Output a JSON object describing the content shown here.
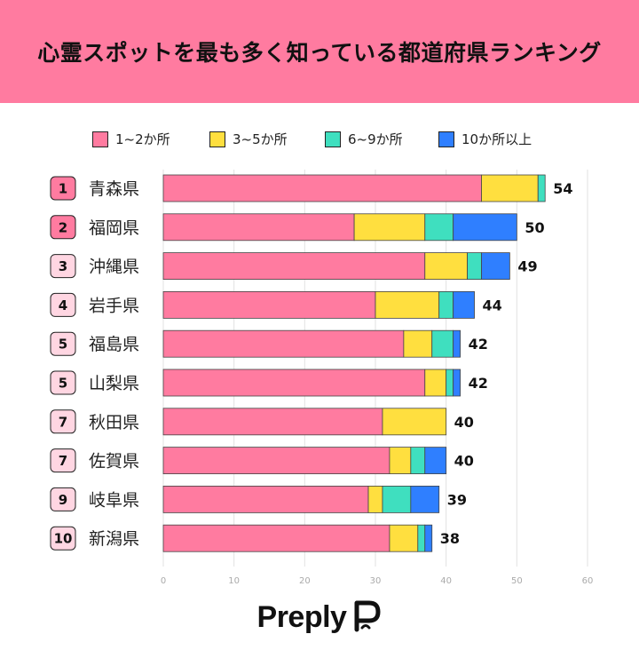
{
  "title": "心霊スポットを最も多く知っている都道府県ランキング",
  "legend": [
    {
      "label": "1~2か所",
      "color": "#ff7ba0"
    },
    {
      "label": "3~5か所",
      "color": "#ffdf3f"
    },
    {
      "label": "6~9か所",
      "color": "#3fdfbf"
    },
    {
      "label": "10か所以上",
      "color": "#2f7fff"
    }
  ],
  "logo_text": "Preply",
  "chart_data": {
    "type": "bar",
    "orientation": "horizontal",
    "stacked": true,
    "categories": [
      "青森県",
      "福岡県",
      "沖縄県",
      "岩手県",
      "福島県",
      "山梨県",
      "秋田県",
      "佐賀県",
      "岐阜県",
      "新潟県"
    ],
    "ranks": [
      "1",
      "2",
      "3",
      "4",
      "5",
      "5",
      "7",
      "7",
      "9",
      "10"
    ],
    "totals": [
      54,
      50,
      49,
      44,
      42,
      42,
      40,
      40,
      39,
      38
    ],
    "series": [
      {
        "name": "1~2か所",
        "color": "#ff7ba0",
        "values": [
          45,
          27,
          37,
          30,
          34,
          37,
          31,
          32,
          29,
          32
        ]
      },
      {
        "name": "3~5か所",
        "color": "#ffdf3f",
        "values": [
          8,
          10,
          6,
          9,
          4,
          3,
          9,
          3,
          2,
          4
        ]
      },
      {
        "name": "6~9か所",
        "color": "#3fdfbf",
        "values": [
          1,
          4,
          2,
          2,
          3,
          1,
          0,
          2,
          4,
          1
        ]
      },
      {
        "name": "10か所以上",
        "color": "#2f7fff",
        "values": [
          0,
          9,
          4,
          3,
          1,
          1,
          0,
          3,
          4,
          1
        ]
      }
    ],
    "xlim": [
      0,
      60
    ],
    "xticks": [
      0,
      10,
      20,
      30,
      40,
      50,
      60
    ],
    "grid": true
  }
}
